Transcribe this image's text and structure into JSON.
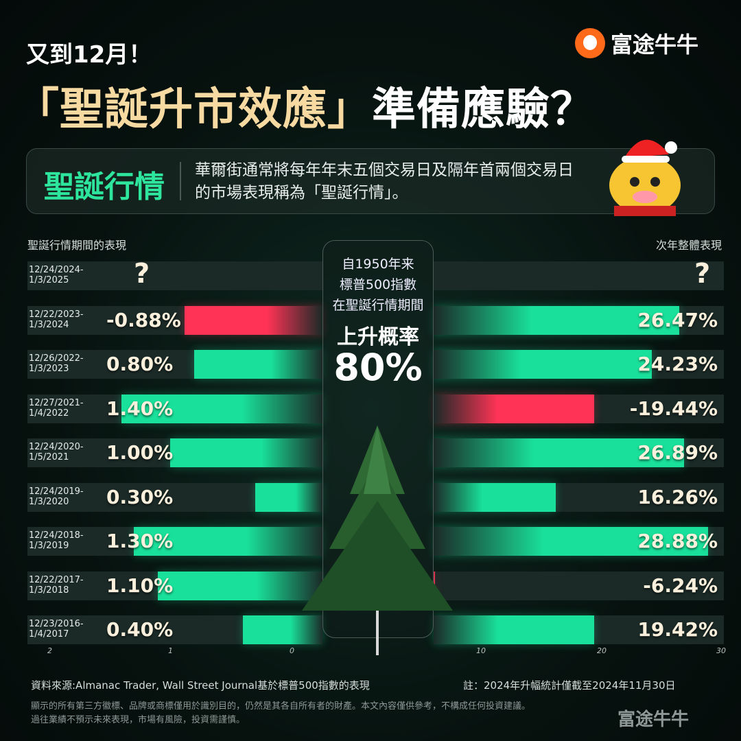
{
  "header": {
    "kicker": "又到12月！",
    "title_highlight": "「聖誕升市效應」",
    "title_rest": "準備應驗？",
    "logo_text": "富途牛牛"
  },
  "card": {
    "title": "聖誕行情",
    "text": "華爾街通常將每年年末五個交易日及隔年首兩個交易日的市場表現稱為「聖誕行情」。"
  },
  "center": {
    "line1": "自1950年来",
    "line2": "標普500指數",
    "line3": "在聖誕行情期間",
    "line4": "上升概率",
    "line5": "80%"
  },
  "colors": {
    "positive": "#19e09a",
    "negative": "#ff3355",
    "accent": "#f7d9a2"
  },
  "chart_data": {
    "type": "bar",
    "left": {
      "title": "聖誕行情期間的表現",
      "unit": "%",
      "xlim": [
        2,
        0
      ],
      "ticks": [
        "2",
        "1",
        "0"
      ]
    },
    "right": {
      "title": "次年整體表現",
      "unit": "%",
      "xlim": [
        0,
        30
      ],
      "ticks": [
        "10",
        "20",
        "30"
      ]
    },
    "categories": [
      "12/24/2024-\n1/3/2025",
      "12/22/2023-\n1/3/2024",
      "12/26/2022-\n1/3/2023",
      "12/27/2021-\n1/4/2022",
      "12/24/2020-\n1/5/2021",
      "12/24/2019-\n1/3/2020",
      "12/24/2018-\n1/3/2019",
      "12/22/2017-\n1/3/2018",
      "12/23/2016-\n1/4/2017"
    ],
    "christmas_rally": [
      null,
      -0.88,
      0.8,
      1.4,
      1.0,
      0.3,
      1.3,
      1.1,
      0.4
    ],
    "christmas_rally_labels": [
      "?",
      "-0.88%",
      "0.80%",
      "1.40%",
      "1.00%",
      "0.30%",
      "1.30%",
      "1.10%",
      "0.40%"
    ],
    "next_year": [
      null,
      26.47,
      24.23,
      -19.44,
      26.89,
      16.26,
      28.88,
      -6.24,
      19.42
    ],
    "next_year_labels": [
      "?",
      "26.47%",
      "24.23%",
      "-19.44%",
      "26.89%",
      "16.26%",
      "28.88%",
      "-6.24%",
      "19.42%"
    ]
  },
  "footer": {
    "source": "資料來源:Almanac Trader, Wall Street Journal基於標普500指數的表現",
    "note": "註：2024年升幅統計僅截至2024年11月30日",
    "disclaimer1": "顯示的所有第三方徽標、品牌或商標僅用於識別目的，仍然是其各自所有者的財產。本文內容僅供參考，不構成任何投資建議。",
    "disclaimer2": "過往業績不預示未來表現，市場有風險，投資需謹慎。",
    "watermark": "富途牛牛"
  }
}
